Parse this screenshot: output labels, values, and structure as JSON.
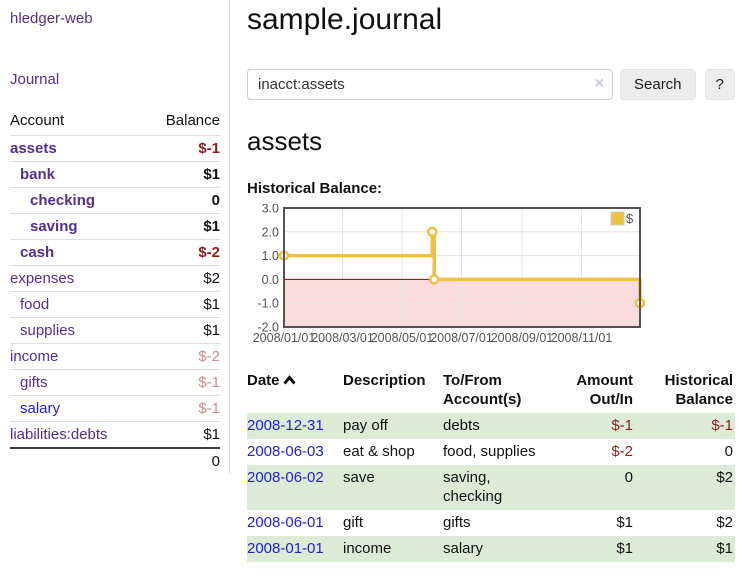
{
  "sidebar": {
    "app_title": "hledger-web",
    "nav": {
      "journal_label": "Journal"
    },
    "accounts_table": {
      "headers": {
        "account": "Account",
        "balance": "Balance"
      },
      "rows": [
        {
          "account": "assets",
          "level": 1,
          "bold": true,
          "link_class": "purple",
          "balance": "$-1",
          "balance_class": "neg-strong"
        },
        {
          "account": "bank",
          "level": 2,
          "bold": true,
          "link_class": "purple",
          "balance": "$1",
          "balance_class": ""
        },
        {
          "account": "checking",
          "level": 3,
          "bold": true,
          "link_class": "purple",
          "balance": "0",
          "balance_class": ""
        },
        {
          "account": "saving",
          "level": 3,
          "bold": true,
          "link_class": "purple",
          "balance": "$1",
          "balance_class": ""
        },
        {
          "account": "cash",
          "level": 2,
          "bold": true,
          "link_class": "purple",
          "balance": "$-2",
          "balance_class": "neg-strong"
        },
        {
          "account": "expenses",
          "level": 1,
          "bold": false,
          "link_class": "purple",
          "balance": "$2",
          "balance_class": ""
        },
        {
          "account": "food",
          "level": 2,
          "bold": false,
          "link_class": "purple",
          "balance": "$1",
          "balance_class": ""
        },
        {
          "account": "supplies",
          "level": 2,
          "bold": false,
          "link_class": "purple",
          "balance": "$1",
          "balance_class": ""
        },
        {
          "account": "income",
          "level": 1,
          "bold": false,
          "link_class": "purple",
          "balance": "$-2",
          "balance_class": "neg-soft"
        },
        {
          "account": "gifts",
          "level": 2,
          "bold": false,
          "link_class": "purple",
          "balance": "$-1",
          "balance_class": "neg-soft"
        },
        {
          "account": "salary",
          "level": 2,
          "bold": false,
          "link_class": "blue",
          "balance": "$-1",
          "balance_class": "neg-soft"
        },
        {
          "account": "liabilities:debts",
          "level": 1,
          "bold": false,
          "link_class": "purple",
          "balance": "$1",
          "balance_class": ""
        }
      ],
      "total": "0"
    }
  },
  "main": {
    "title": "sample.journal",
    "search": {
      "value": "inacct:assets",
      "clear_icon": "×",
      "button_label": "Search",
      "help_label": "?"
    },
    "account_heading": "assets",
    "chart_title": "Historical Balance:",
    "register": {
      "headers": {
        "date": "Date",
        "sort_direction": "ascending",
        "description": "Description",
        "accounts": "To/From Account(s)",
        "amount": "Amount Out/In",
        "balance": "Historical Balance"
      },
      "rows": [
        {
          "date": "2008-12-31",
          "description": "pay off",
          "accounts": "debts",
          "amount": "$-1",
          "amount_negative": true,
          "balance": "$-1",
          "balance_negative": true
        },
        {
          "date": "2008-06-03",
          "description": "eat & shop",
          "accounts": "food, supplies",
          "amount": "$-2",
          "amount_negative": true,
          "balance": "0",
          "balance_negative": false
        },
        {
          "date": "2008-06-02",
          "description": "save",
          "accounts": "saving, checking",
          "amount": "0",
          "amount_negative": false,
          "balance": "$2",
          "balance_negative": false
        },
        {
          "date": "2008-06-01",
          "description": "gift",
          "accounts": "gifts",
          "amount": "$1",
          "amount_negative": false,
          "balance": "$2",
          "balance_negative": false
        },
        {
          "date": "2008-01-01",
          "description": "income",
          "accounts": "salary",
          "amount": "$1",
          "amount_negative": false,
          "balance": "$1",
          "balance_negative": false
        }
      ]
    }
  },
  "chart_data": {
    "type": "line",
    "style": "step-after",
    "series": [
      {
        "name": "$",
        "points": [
          {
            "date": "2008-01-01",
            "value": 1
          },
          {
            "date": "2008-06-01",
            "value": 2
          },
          {
            "date": "2008-06-03",
            "value": 0
          },
          {
            "date": "2008-12-31",
            "value": -1
          }
        ]
      }
    ],
    "x_range": [
      "2008-01-01",
      "2008-12-31"
    ],
    "ylim": [
      -2,
      3
    ],
    "yticks": [
      3,
      2,
      1,
      0,
      -1,
      -2
    ],
    "xticks": [
      {
        "label": "2008/01/01",
        "date": "2008-01-01"
      },
      {
        "label": "2008/03/01",
        "date": "2008-03-01"
      },
      {
        "label": "2008/05/01",
        "date": "2008-05-01"
      },
      {
        "label": "2008/07/01",
        "date": "2008-07-01"
      },
      {
        "label": "2008/09/01",
        "date": "2008-09-01"
      },
      {
        "label": "2008/11/01",
        "date": "2008-11-01"
      }
    ],
    "legend_position": "top-right",
    "grid": true,
    "negative_region_shaded": true
  },
  "colors": {
    "link_purple": "#542e91",
    "link_blue": "#2222cc",
    "negative_strong": "#8d1f1f",
    "negative_soft": "#c98f8f",
    "row_green": "#dcebd6",
    "series_gold": "#edc240",
    "negative_region_pink": "#fadcdc",
    "zero_line_red": "#8b0000",
    "chart_frame": "#545454",
    "gridline": "#e3e3e3"
  },
  "icons": {
    "sort": "chevron-up",
    "clear": "x-cross"
  }
}
